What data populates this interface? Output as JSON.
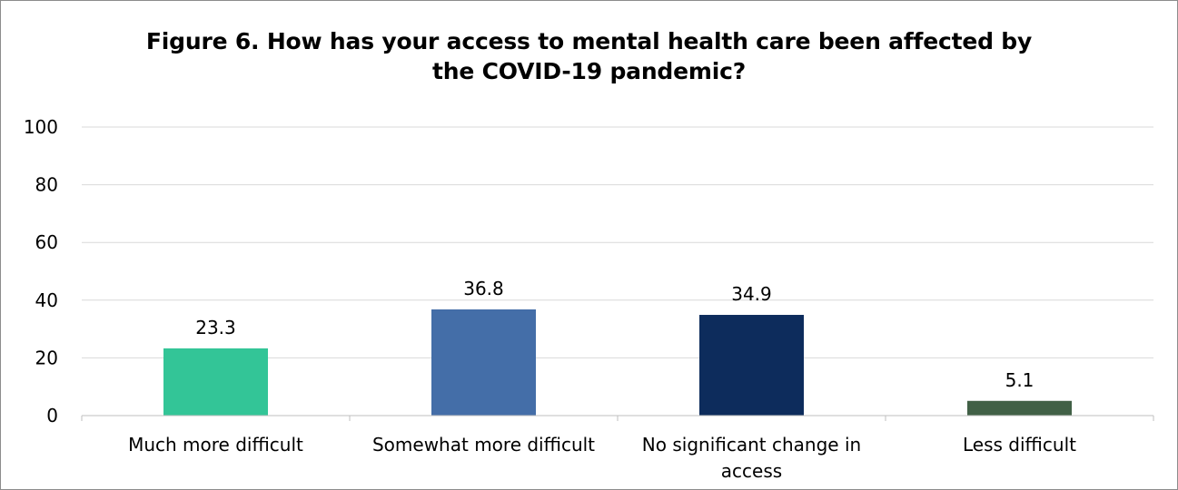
{
  "chart_data": {
    "type": "bar",
    "title_lines": [
      "Figure 6. How has your access to mental health care been affected by",
      "the COVID-19 pandemic?"
    ],
    "categories": [
      [
        "Much more difficult"
      ],
      [
        "Somewhat more difficult"
      ],
      [
        "No significant change in",
        "access"
      ],
      [
        "Less difficult"
      ]
    ],
    "values": [
      23.3,
      36.8,
      34.9,
      5.1
    ],
    "value_labels": [
      "23.3",
      "36.8",
      "34.9",
      "5.1"
    ],
    "bar_colors": [
      "#33c597",
      "#446ea8",
      "#0d2c5c",
      "#416046"
    ],
    "ylim": [
      0,
      100
    ],
    "yticks": [
      0,
      20,
      40,
      60,
      80,
      100
    ],
    "grid": true,
    "legend": "none",
    "xlabel": "",
    "ylabel": ""
  }
}
